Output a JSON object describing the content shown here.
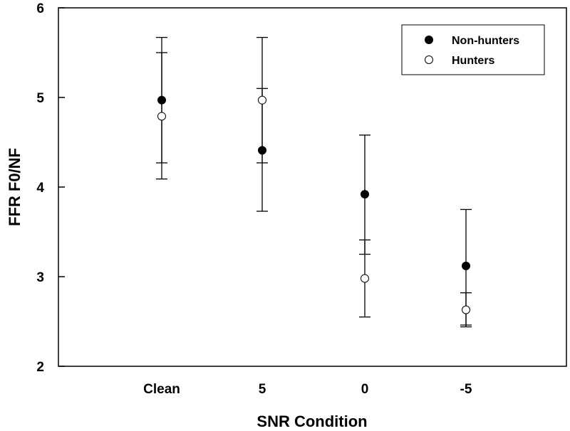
{
  "chart_data": {
    "type": "scatter",
    "title": "",
    "xlabel": "SNR Condition",
    "ylabel": "FFR F0/NF",
    "categories": [
      "Clean",
      "5",
      "0",
      "-5"
    ],
    "ylim": [
      2,
      6
    ],
    "yticks": [
      "2",
      "3",
      "4",
      "5",
      "6"
    ],
    "grid": false,
    "legend_position": "top-right",
    "error_bars": true,
    "series": [
      {
        "name": "Non-hunters",
        "marker": "filled-circle",
        "color": "#000000",
        "values": [
          4.97,
          4.41,
          3.92,
          3.12
        ],
        "lower": [
          4.27,
          3.73,
          3.25,
          2.46
        ],
        "upper": [
          5.67,
          5.1,
          4.58,
          3.75
        ]
      },
      {
        "name": "Hunters",
        "marker": "open-circle",
        "color": "#000000",
        "values": [
          4.79,
          4.97,
          2.98,
          2.63
        ],
        "lower": [
          4.09,
          4.27,
          2.55,
          2.44
        ],
        "upper": [
          5.5,
          5.67,
          3.41,
          2.82
        ]
      }
    ]
  }
}
